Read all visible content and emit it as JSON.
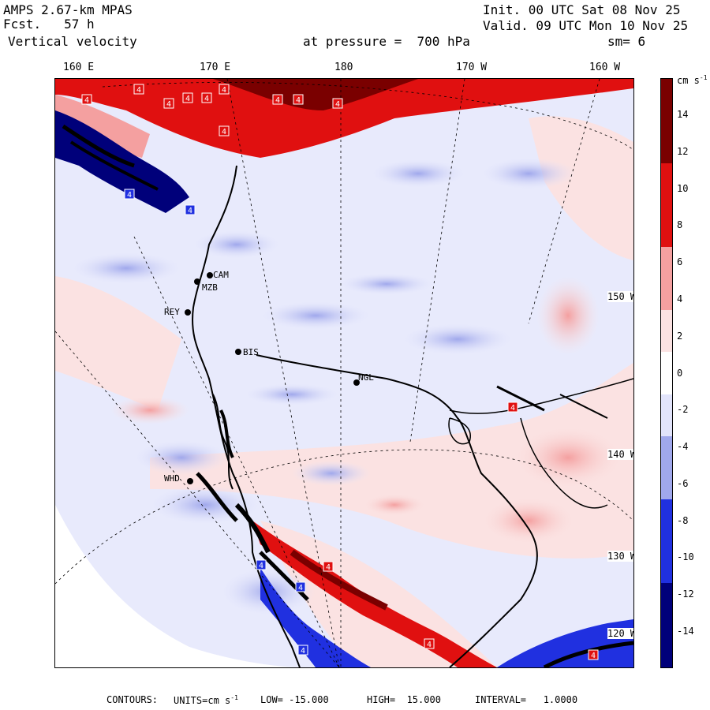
{
  "header": {
    "model": "AMPS 2.67-km MPAS",
    "fcst_label": "Fcst.",
    "fcst_value": "57 h",
    "field": "Vertical velocity",
    "init": "Init. 00 UTC Sat 08 Nov 25",
    "valid": "Valid. 09 UTC Mon 10 Nov 25",
    "level": "at pressure =  700 hPa",
    "smoothing": "sm= 6"
  },
  "top_ticks": [
    "160 E",
    "170 E",
    "180",
    "170 W",
    "160 W"
  ],
  "right_ticks": [
    "150 W",
    "140 W",
    "130 W",
    "120 W"
  ],
  "colorbar": {
    "units": "cm s",
    "units_exp": "-1",
    "labels": [
      "14",
      "12",
      "10",
      "8",
      "6",
      "4",
      "2",
      "0",
      "-2",
      "-4",
      "-6",
      "-8",
      "-10",
      "-12",
      "-14"
    ],
    "colors": {
      "dark_red": "#7a0000",
      "red": "#e01010",
      "light_red": "#f4a0a0",
      "pale_red": "#fbe2e2",
      "white": "#ffffff",
      "pale_blue": "#e2e4fb",
      "light_blue": "#a0a8ec",
      "blue": "#2030e0",
      "dark_blue": "#00007a"
    }
  },
  "stations": [
    "CAM",
    "MZB",
    "REY",
    "BIS",
    "NGL",
    "WHD"
  ],
  "contour_markers": [
    "4",
    "4",
    "4",
    "4",
    "4",
    "4",
    "4",
    "4",
    "4",
    "4",
    "4",
    "4",
    "4",
    "4",
    "4",
    "4",
    "4",
    "4",
    "4"
  ],
  "footer": {
    "contours_label": "CONTOURS:",
    "units_label": "UNITS=cm s",
    "units_exp": "-1",
    "low": "LOW= -15.000",
    "high": "HIGH=  15.000",
    "interval": "INTERVAL=   1.0000"
  }
}
